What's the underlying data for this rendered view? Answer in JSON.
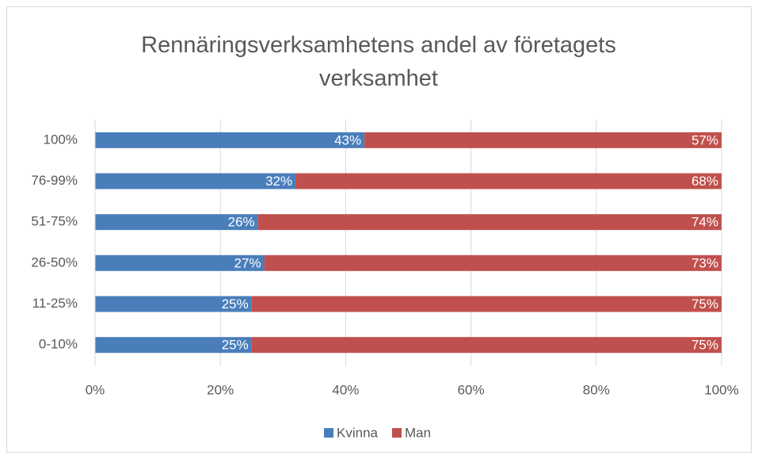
{
  "chart_data": {
    "type": "stacked-bar-horizontal",
    "title": "Rennäringsverksamhetens andel av företagets verksamhet",
    "categories": [
      "100%",
      "76-99%",
      "51-75%",
      "26-50%",
      "11-25%",
      "0-10%"
    ],
    "series": [
      {
        "name": "Kvinna",
        "color": "#4a7ebb",
        "values": [
          43,
          32,
          26,
          27,
          25,
          25
        ],
        "value_labels": [
          "43%",
          "32%",
          "26%",
          "27%",
          "25%",
          "25%"
        ]
      },
      {
        "name": "Man",
        "color": "#c0504d",
        "values": [
          57,
          68,
          74,
          73,
          75,
          75
        ],
        "value_labels": [
          "57%",
          "68%",
          "74%",
          "73%",
          "75%",
          "75%"
        ]
      }
    ],
    "xlim": [
      0,
      100
    ],
    "xticks": [
      {
        "value": 0,
        "label": "0%"
      },
      {
        "value": 20,
        "label": "20%"
      },
      {
        "value": 40,
        "label": "40%"
      },
      {
        "value": 60,
        "label": "60%"
      },
      {
        "value": 80,
        "label": "80%"
      },
      {
        "value": 100,
        "label": "100%"
      }
    ],
    "grid": true,
    "legend": "bottom"
  }
}
